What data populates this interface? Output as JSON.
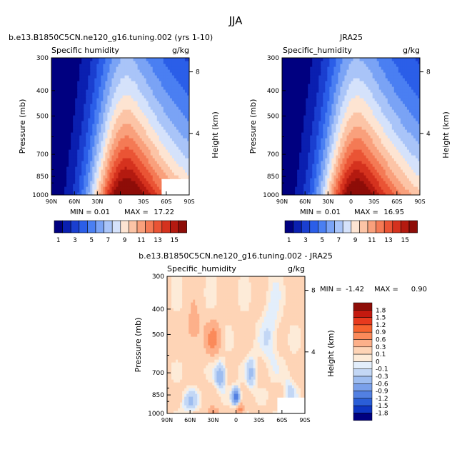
{
  "chart_data": {
    "type": "heatmap",
    "title": "JJA",
    "panels": [
      {
        "id": "model",
        "subtitle": "b.e13.B1850C5CN.ne120_g16.tuning.002 (yrs 1-10)",
        "field_label": "Specific humidity",
        "units": "g/kg",
        "ylabel": "Pressure (mb)",
        "ylabel_right": "Height (km)",
        "y_ticks": [
          "300",
          "400",
          "500",
          "700",
          "850",
          "1000"
        ],
        "y_right_ticks": [
          "8",
          "4"
        ],
        "x_ticks": [
          "90N",
          "60N",
          "30N",
          "0",
          "30S",
          "60S",
          "90S"
        ],
        "min_label": "MIN =",
        "min": "0.01",
        "max_label": "MAX =",
        "max": "17.22",
        "peak_value": 17.22,
        "peak_lat": -8
      },
      {
        "id": "reanalysis",
        "subtitle": "JRA25",
        "field_label": "Specific_humidity",
        "units": "g/kg",
        "ylabel": "Pressure (mb)",
        "ylabel_right": "Height (km)",
        "y_ticks": [
          "300",
          "400",
          "500",
          "700",
          "850",
          "1000"
        ],
        "y_right_ticks": [
          "8",
          "4"
        ],
        "x_ticks": [
          "90N",
          "60N",
          "30N",
          "0",
          "30S",
          "60S",
          "90S"
        ],
        "min_label": "MIN =",
        "min": "0.01",
        "max_label": "MAX =",
        "max": "16.95",
        "peak_value": 16.95,
        "peak_lat": -8
      },
      {
        "id": "difference",
        "subtitle": "b.e13.B1850C5CN.ne120_g16.tuning.002 - JRA25",
        "field_label": "Specific_humidity",
        "units": "g/kg",
        "ylabel": "Pressure (mb)",
        "ylabel_right": "Height (km)",
        "y_ticks": [
          "300",
          "400",
          "500",
          "700",
          "850",
          "1000"
        ],
        "y_right_ticks": [
          "8",
          "4"
        ],
        "x_ticks": [
          "90N",
          "60N",
          "30N",
          "0",
          "30S",
          "60S",
          "90S"
        ],
        "min_label": "MIN =",
        "min": "-1.42",
        "max_label": "MAX =",
        "max": "0.90"
      }
    ],
    "colorbar_abs": {
      "labels": [
        "1",
        "3",
        "5",
        "7",
        "9",
        "11",
        "13",
        "15"
      ],
      "colors": [
        "#000080",
        "#0a1fb0",
        "#1a3fd0",
        "#2b5ee8",
        "#4a7ff2",
        "#7aa3f5",
        "#a9c4f8",
        "#d5e2fb",
        "#fde4d2",
        "#fcc4a6",
        "#f9a07c",
        "#f47a55",
        "#ea5435",
        "#d5321e",
        "#b41a10",
        "#8e0d08"
      ]
    },
    "colorbar_diff": {
      "labels": [
        "1.8",
        "1.5",
        "1.2",
        "0.9",
        "0.6",
        "0.3",
        "0.1",
        "0",
        "-0.1",
        "-0.3",
        "-0.6",
        "-0.9",
        "-1.2",
        "-1.5",
        "-1.8"
      ],
      "colors": [
        "#8e0d08",
        "#c41a0f",
        "#e83a1e",
        "#f7632f",
        "#fb8a5a",
        "#fdb08a",
        "#fed4b6",
        "#fdebd8",
        "#e3eefb",
        "#c3d7f5",
        "#9ebdf0",
        "#7aa0ea",
        "#5280e2",
        "#2a5ed7",
        "#0e36c2",
        "#000080"
      ]
    }
  }
}
